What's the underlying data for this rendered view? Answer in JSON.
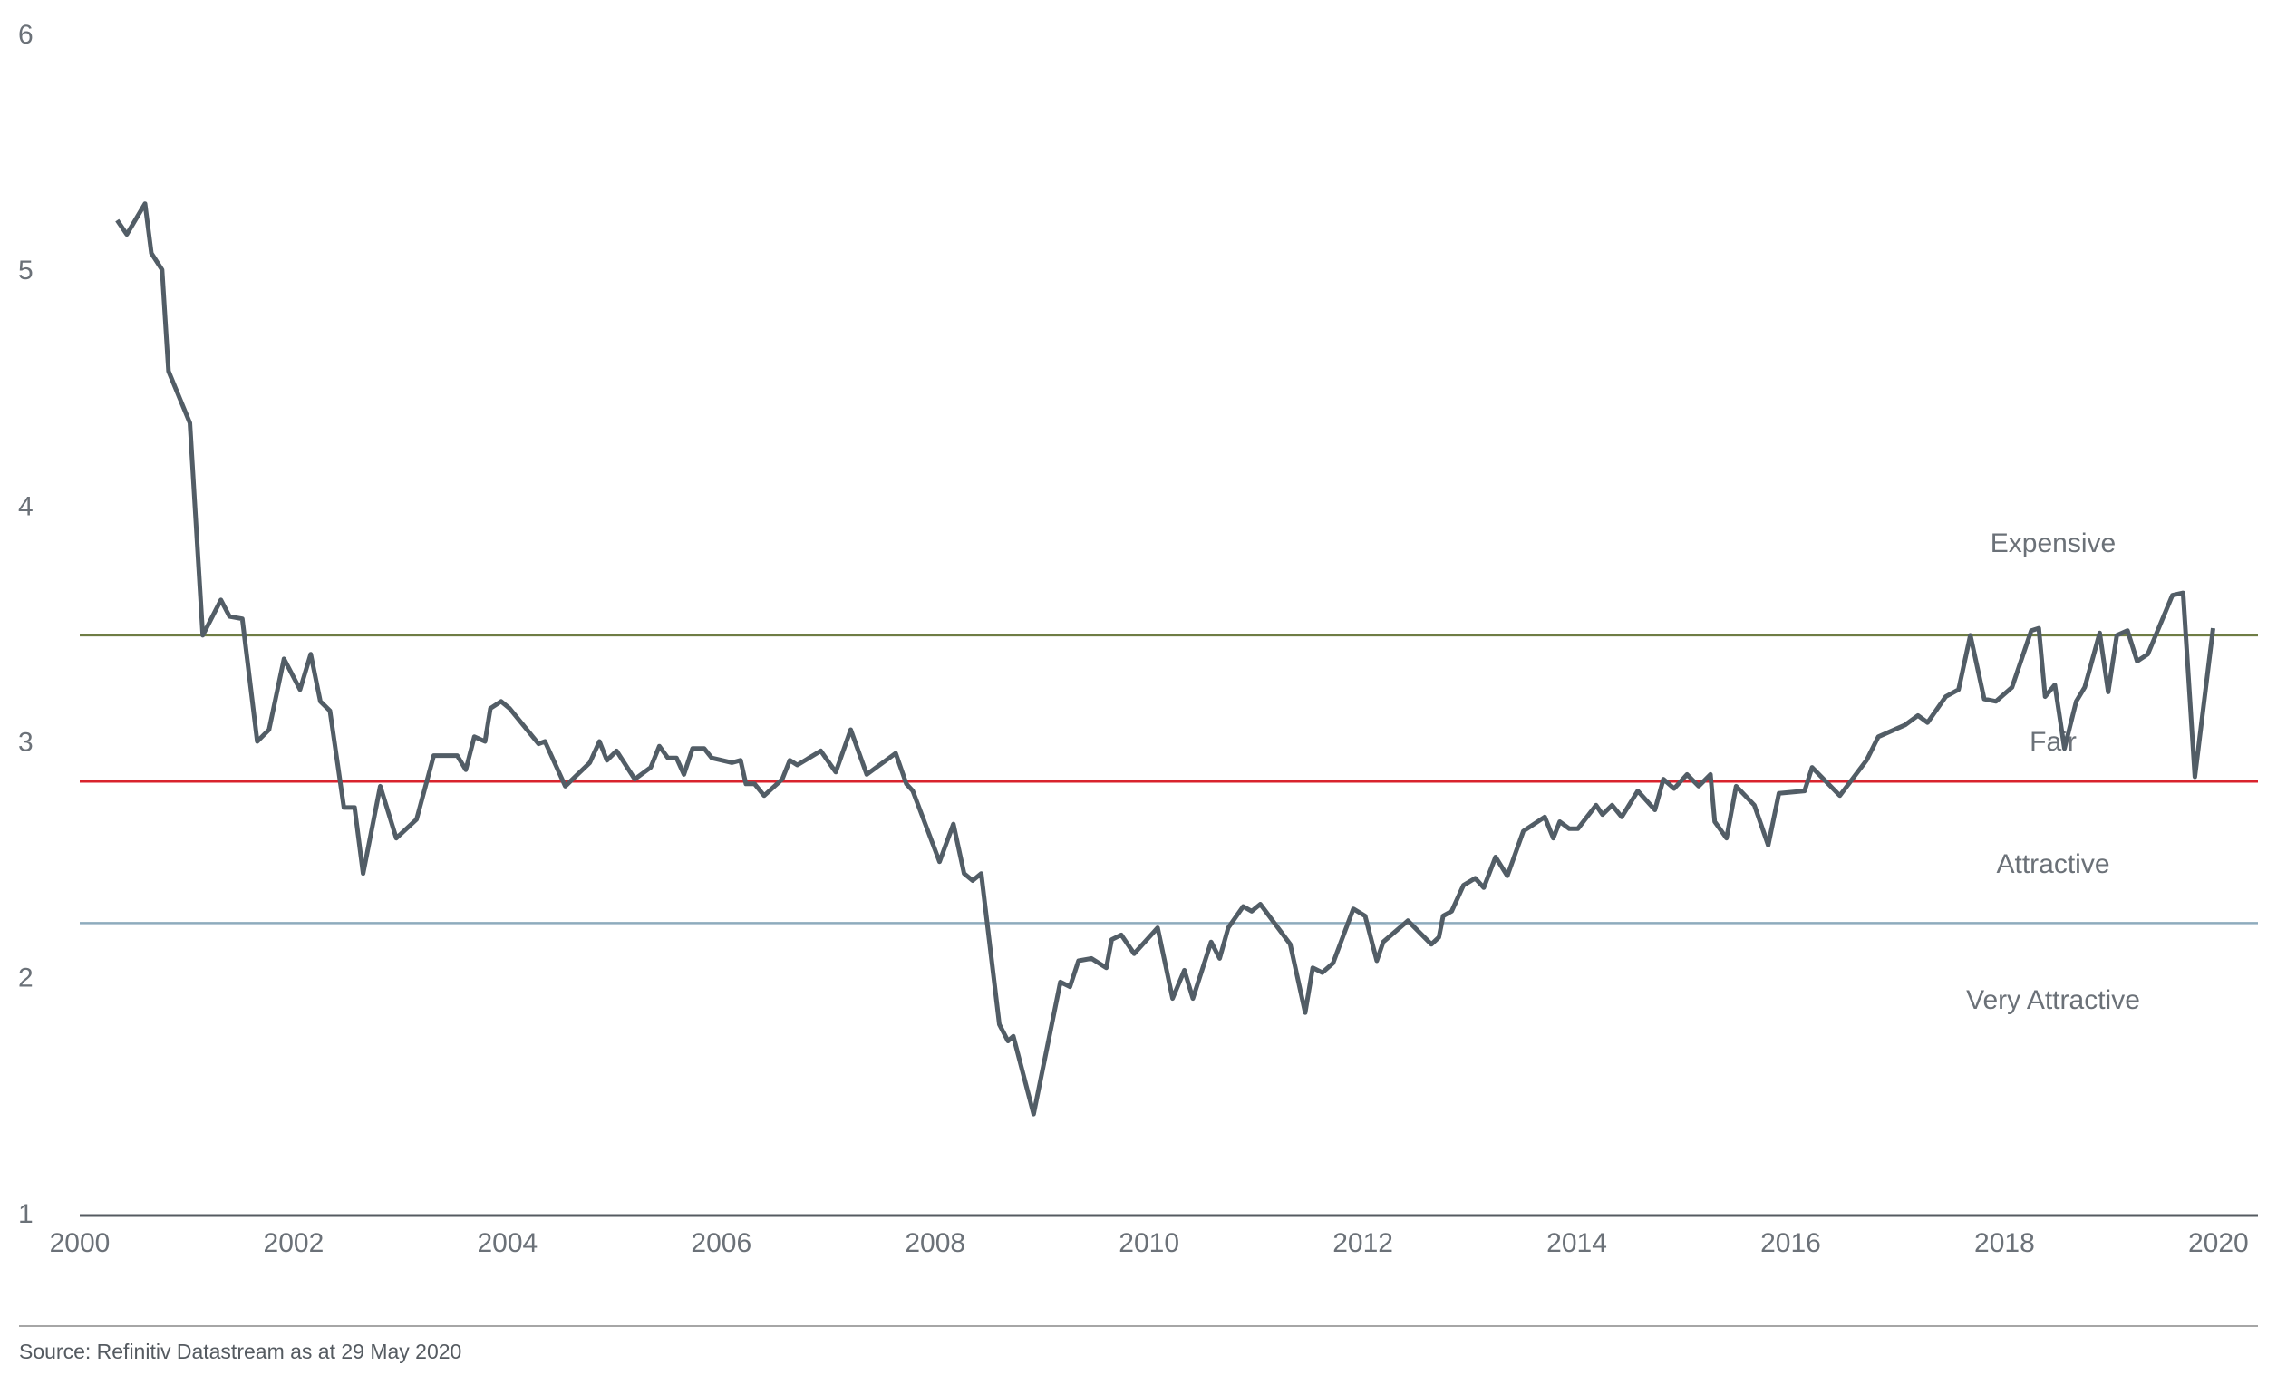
{
  "chart_data": {
    "type": "line",
    "x": [
      2000.35,
      2000.44,
      2000.61,
      2000.67,
      2000.77,
      2000.83,
      2001.03,
      2001.15,
      2001.32,
      2001.4,
      2001.52,
      2001.66,
      2001.77,
      2001.91,
      2002.06,
      2002.16,
      2002.25,
      2002.34,
      2002.47,
      2002.57,
      2002.65,
      2002.81,
      2002.96,
      2003.15,
      2003.31,
      2003.53,
      2003.61,
      2003.69,
      2003.79,
      2003.84,
      2003.94,
      2004.02,
      2004.29,
      2004.35,
      2004.54,
      2004.77,
      2004.86,
      2004.93,
      2005.02,
      2005.19,
      2005.34,
      2005.42,
      2005.5,
      2005.58,
      2005.65,
      2005.73,
      2005.84,
      2005.91,
      2006.1,
      2006.18,
      2006.23,
      2006.31,
      2006.4,
      2006.57,
      2006.64,
      2006.71,
      2006.93,
      2007.07,
      2007.21,
      2007.36,
      2007.63,
      2007.73,
      2007.79,
      2008.04,
      2008.17,
      2008.27,
      2008.35,
      2008.43,
      2008.6,
      2008.68,
      2008.73,
      2008.92,
      2009.17,
      2009.26,
      2009.34,
      2009.46,
      2009.6,
      2009.65,
      2009.74,
      2009.86,
      2010.08,
      2010.22,
      2010.33,
      2010.41,
      2010.58,
      2010.66,
      2010.74,
      2010.88,
      2010.96,
      2011.04,
      2011.32,
      2011.46,
      2011.53,
      2011.62,
      2011.72,
      2011.91,
      2012.02,
      2012.13,
      2012.19,
      2012.42,
      2012.64,
      2012.71,
      2012.75,
      2012.83,
      2012.94,
      2013.05,
      2013.13,
      2013.24,
      2013.35,
      2013.5,
      2013.7,
      2013.78,
      2013.84,
      2013.93,
      2014.01,
      2014.18,
      2014.24,
      2014.33,
      2014.42,
      2014.57,
      2014.73,
      2014.81,
      2014.91,
      2015.03,
      2015.14,
      2015.25,
      2015.29,
      2015.4,
      2015.49,
      2015.66,
      2015.79,
      2015.89,
      2016.13,
      2016.2,
      2016.46,
      2016.71,
      2016.82,
      2017.07,
      2017.19,
      2017.28,
      2017.45,
      2017.57,
      2017.68,
      2017.81,
      2017.92,
      2018.07,
      2018.25,
      2018.32,
      2018.38,
      2018.47,
      2018.56,
      2018.67,
      2018.75,
      2018.89,
      2018.97,
      2019.05,
      2019.15,
      2019.24,
      2019.34,
      2019.57,
      2019.67,
      2019.78,
      2019.95
    ],
    "series": [
      {
        "color": "#525d66",
        "values": [
          5.22,
          5.16,
          5.29,
          5.08,
          5.01,
          4.58,
          4.36,
          3.46,
          3.61,
          3.54,
          3.53,
          3.01,
          3.06,
          3.36,
          3.23,
          3.38,
          3.18,
          3.14,
          2.73,
          2.73,
          2.45,
          2.82,
          2.6,
          2.68,
          2.95,
          2.95,
          2.89,
          3.03,
          3.01,
          3.15,
          3.18,
          3.15,
          3.0,
          3.01,
          2.82,
          2.92,
          3.01,
          2.93,
          2.97,
          2.85,
          2.9,
          2.99,
          2.94,
          2.94,
          2.87,
          2.98,
          2.98,
          2.94,
          2.92,
          2.93,
          2.83,
          2.83,
          2.78,
          2.85,
          2.93,
          2.91,
          2.97,
          2.88,
          3.06,
          2.87,
          2.96,
          2.83,
          2.8,
          2.5,
          2.66,
          2.45,
          2.42,
          2.45,
          1.81,
          1.74,
          1.76,
          1.43,
          1.99,
          1.97,
          2.08,
          2.09,
          2.05,
          2.17,
          2.19,
          2.11,
          2.22,
          1.92,
          2.04,
          1.92,
          2.16,
          2.09,
          2.22,
          2.31,
          2.29,
          2.32,
          2.15,
          1.86,
          2.05,
          2.03,
          2.07,
          2.3,
          2.27,
          2.08,
          2.16,
          2.25,
          2.15,
          2.18,
          2.27,
          2.29,
          2.4,
          2.43,
          2.39,
          2.52,
          2.44,
          2.63,
          2.69,
          2.6,
          2.67,
          2.64,
          2.64,
          2.74,
          2.7,
          2.74,
          2.69,
          2.8,
          2.72,
          2.85,
          2.81,
          2.87,
          2.82,
          2.87,
          2.67,
          2.6,
          2.82,
          2.74,
          2.57,
          2.79,
          2.8,
          2.9,
          2.78,
          2.93,
          3.03,
          3.08,
          3.12,
          3.09,
          3.2,
          3.23,
          3.46,
          3.19,
          3.18,
          3.24,
          3.48,
          3.49,
          3.2,
          3.25,
          2.98,
          3.18,
          3.24,
          3.47,
          3.22,
          3.46,
          3.48,
          3.35,
          3.38,
          3.63,
          3.64,
          2.86,
          3.49
        ]
      }
    ],
    "xlim": [
      2000,
      2020.37
    ],
    "xticks": [
      2000,
      2002,
      2004,
      2006,
      2008,
      2010,
      2012,
      2014,
      2016,
      2018,
      2020
    ],
    "ylim": [
      1,
      6
    ],
    "yticks": [
      1,
      2,
      3,
      4,
      5,
      6
    ],
    "reference_lines": [
      {
        "value": 3.46,
        "color": "#6f7d45"
      },
      {
        "value": 2.84,
        "color": "#d9232d"
      },
      {
        "value": 2.24,
        "color": "#8eabbd"
      }
    ],
    "annotations": [
      "Expensive",
      "Fair",
      "Attractive",
      "Very Attractive"
    ],
    "source": "Source: Refinitiv Datastream as at 29 May 2020"
  }
}
